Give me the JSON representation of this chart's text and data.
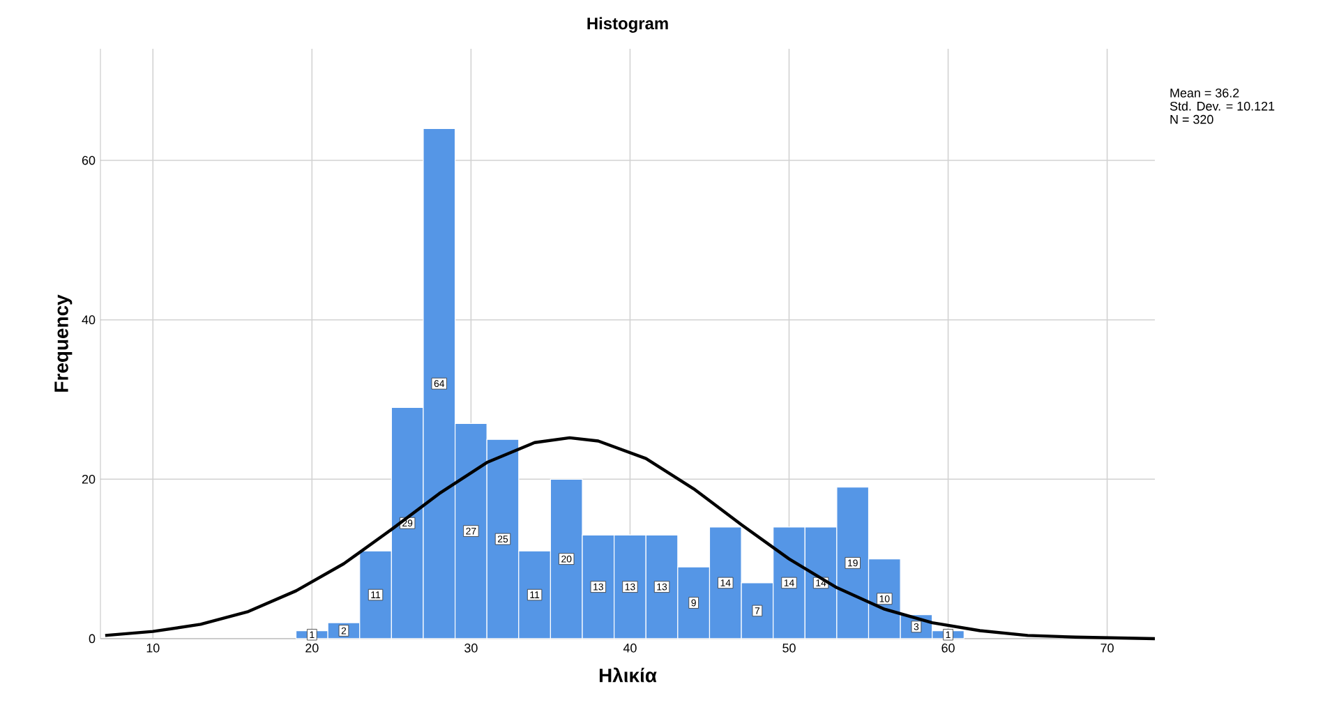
{
  "chart_data": {
    "type": "histogram",
    "title": "Histogram",
    "xlabel": "Ηλικία",
    "ylabel": "Frequency",
    "bins": [
      19,
      21,
      23,
      25,
      27,
      29,
      31,
      33,
      35,
      37,
      39,
      41,
      43,
      45,
      47,
      49,
      51,
      53,
      55,
      57,
      59,
      61
    ],
    "values": [
      1,
      2,
      11,
      29,
      64,
      27,
      25,
      11,
      20,
      13,
      13,
      13,
      9,
      14,
      7,
      14,
      14,
      19,
      10,
      3,
      1
    ],
    "color": "#5596e6",
    "value_labels": [
      "1",
      "2",
      "11",
      "29",
      "64",
      "27",
      "25",
      "11",
      "20",
      "13",
      "13",
      "13",
      "9",
      "14",
      "7",
      "14",
      "14",
      "19",
      "10",
      "3",
      "1"
    ],
    "series": [
      {
        "type": "line",
        "color": "#000000",
        "x": [
          7,
          10,
          13,
          16,
          19,
          22,
          25,
          28,
          31,
          34,
          36.2,
          38,
          41,
          44,
          47,
          50,
          53,
          56,
          59,
          62,
          65,
          68,
          73
        ],
        "values": [
          0.4,
          0.9,
          1.8,
          3.4,
          6.0,
          9.4,
          13.7,
          18.2,
          22.1,
          24.6,
          25.2,
          24.8,
          22.6,
          18.8,
          14.3,
          10.0,
          6.4,
          3.7,
          2.0,
          1.0,
          0.4,
          0.2,
          0.0
        ]
      }
    ],
    "xlim": [
      6.7,
      73
    ],
    "ylim": [
      0,
      74
    ],
    "xticks": [
      10,
      20,
      30,
      40,
      50,
      60,
      70
    ],
    "yticks": [
      0,
      20,
      40,
      60
    ],
    "grid": true,
    "annotations": [
      "Mean = 36.2",
      "Std. Dev. = 10.121",
      "N = 320"
    ]
  }
}
